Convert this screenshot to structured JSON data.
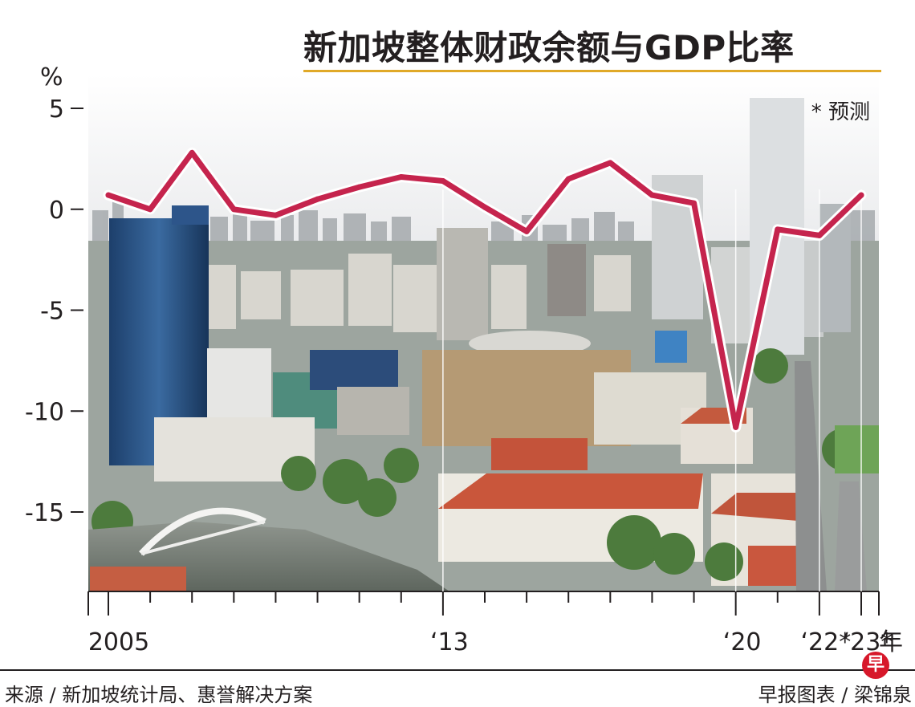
{
  "header": {
    "title": "新加坡整体财政余额与GDP比率"
  },
  "footer": {
    "source": "来源 / 新加坡统计局、惠誉解决方案",
    "credit": "早报图表 / 梁锦泉",
    "logo_text": "早"
  },
  "colors": {
    "line": "#c5244d",
    "line_halo": "#ffffff",
    "title_rule": "#e0a928",
    "text": "#231f20",
    "logo": "#d7182a"
  },
  "chart_data": {
    "type": "line",
    "title": "新加坡整体财政余额与GDP比率",
    "ylabel": "%",
    "xlabel": "年",
    "ylim": [
      -19,
      7
    ],
    "yticks": [
      5,
      0,
      -5,
      -10,
      -15
    ],
    "ytick_labels": [
      "5",
      "0",
      "-5",
      "-10",
      "-15"
    ],
    "x": [
      2005,
      2006,
      2007,
      2008,
      2009,
      2010,
      2011,
      2012,
      2013,
      2014,
      2015,
      2016,
      2017,
      2018,
      2019,
      2020,
      2021,
      2022,
      2023
    ],
    "xtick_labels": [
      {
        "x": 2005,
        "label": "2005"
      },
      {
        "x": 2013,
        "label": "‘13"
      },
      {
        "x": 2020,
        "label": "‘20"
      },
      {
        "x": 2022,
        "label": "‘22*"
      },
      {
        "x": 2023,
        "label": "‘23*"
      }
    ],
    "series": [
      {
        "values": [
          0.7,
          0.0,
          2.8,
          0.0,
          -0.3,
          0.5,
          1.1,
          1.6,
          1.4,
          0.1,
          -1.1,
          1.5,
          2.3,
          0.7,
          0.3,
          -10.8,
          -1.0,
          -1.3,
          0.7
        ]
      }
    ],
    "forecast_note": "* 预测",
    "grid": false,
    "background": "photo of city skyline"
  }
}
